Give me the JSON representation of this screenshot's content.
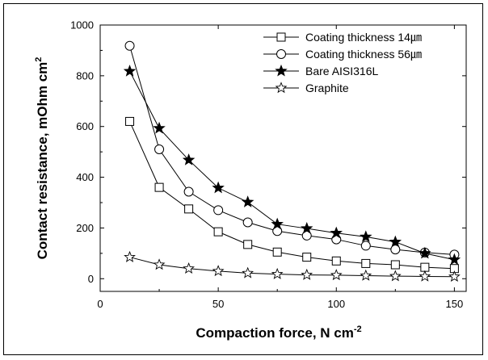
{
  "chart_data": {
    "type": "line",
    "title": "",
    "xlabel": "Compaction force, N cm",
    "xlabel_sup": "-2",
    "ylabel": "Contact resistance, mOhm cm",
    "ylabel_sup": "2",
    "xlim": [
      0,
      155
    ],
    "ylim": [
      -50,
      1000
    ],
    "xticks": [
      0,
      50,
      100,
      150
    ],
    "yticks": [
      0,
      200,
      400,
      600,
      800,
      1000
    ],
    "grid": false,
    "legend_position": "top-right",
    "x": [
      12.5,
      25,
      37.5,
      50,
      62.5,
      75,
      87.5,
      100,
      112.5,
      125,
      137.5,
      150
    ],
    "series": [
      {
        "name": "Coating thickness 14㎛",
        "marker": "square",
        "values": [
          620,
          360,
          275,
          185,
          135,
          105,
          85,
          70,
          60,
          55,
          45,
          40
        ]
      },
      {
        "name": "Coating thickness 56㎛",
        "marker": "circle",
        "values": [
          918,
          510,
          343,
          270,
          222,
          188,
          170,
          155,
          130,
          115,
          103,
          95
        ]
      },
      {
        "name": "Bare AISI316L",
        "marker": "filled-star",
        "values": [
          818,
          593,
          468,
          358,
          302,
          215,
          198,
          180,
          165,
          145,
          100,
          75
        ]
      },
      {
        "name": "Graphite",
        "marker": "open-star",
        "values": [
          85,
          55,
          40,
          30,
          22,
          18,
          15,
          14,
          12,
          10,
          9,
          8
        ]
      }
    ]
  }
}
